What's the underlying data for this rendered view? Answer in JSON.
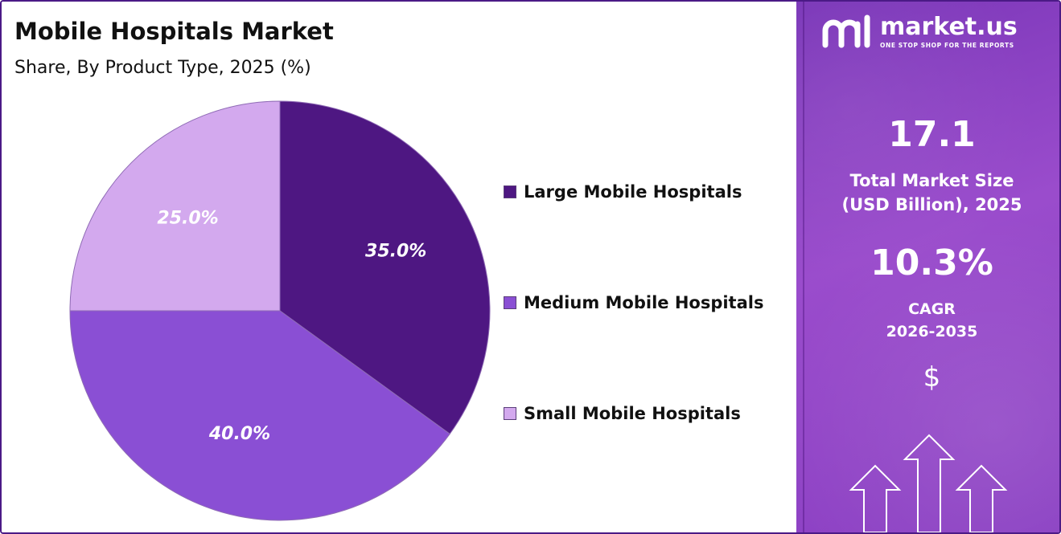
{
  "chart_data": {
    "type": "pie",
    "title": "Mobile Hospitals Market",
    "subtitle": "Share, By Product Type, 2025 (%)",
    "slices": [
      {
        "label": "Large Mobile Hospitals",
        "value": 35.0,
        "display": "35.0%",
        "color": "#4e1782",
        "text_color": "#ffffff"
      },
      {
        "label": "Medium Mobile Hospitals",
        "value": 40.0,
        "display": "40.0%",
        "color": "#8a4fd4",
        "text_color": "#ffffff"
      },
      {
        "label": "Small Mobile Hospitals",
        "value": 25.0,
        "display": "25.0%",
        "color": "#d3a9ee",
        "text_color": "#ffffff"
      }
    ],
    "legend_position": "right"
  },
  "brand": {
    "name": "market.us",
    "tagline": "ONE STOP SHOP FOR THE REPORTS"
  },
  "stats": {
    "market_size_value": "17.1",
    "market_size_caption_1": "Total Market Size",
    "market_size_caption_2": "(USD Billion), 2025",
    "cagr_value": "10.3%",
    "cagr_caption_1": "CAGR",
    "cagr_caption_2": "2026-2035",
    "currency_symbol": "$"
  },
  "colors": {
    "panel": "#8a3fc2",
    "frame": "#4b1a86"
  }
}
